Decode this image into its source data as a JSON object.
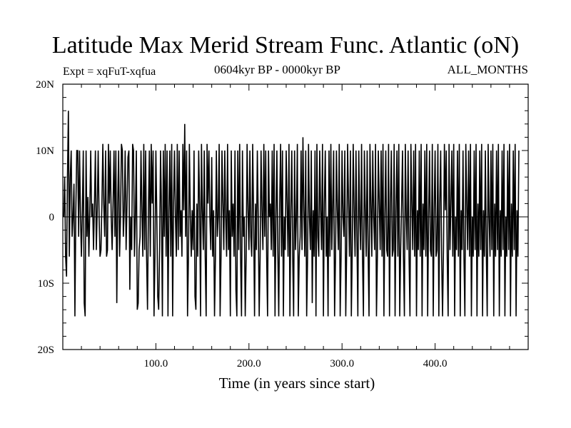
{
  "header": {
    "title": "Latitude Max Merid Stream Func. Atlantic (oN)",
    "expt": "Expt = xqFuT-xqfua",
    "period": "0604kyr BP - 0000kyr BP",
    "months": "ALL_MONTHS"
  },
  "chart_data": {
    "type": "line",
    "title": "Latitude Max Merid Stream Func. Atlantic (oN)",
    "xlabel": "Time (in years since start)",
    "ylabel": "",
    "xlim": [
      0,
      500
    ],
    "ylim": [
      -20,
      20
    ],
    "grid": false,
    "x_ticks": [
      {
        "value": 100,
        "label": "100.0"
      },
      {
        "value": 200,
        "label": "200.0"
      },
      {
        "value": 300,
        "label": "300.0"
      },
      {
        "value": 400,
        "label": "400.0"
      }
    ],
    "y_ticks": [
      {
        "value": 20,
        "label": "20N"
      },
      {
        "value": 10,
        "label": "10N"
      },
      {
        "value": 0,
        "label": "0"
      },
      {
        "value": -10,
        "label": "10S"
      },
      {
        "value": -20,
        "label": "20S"
      }
    ],
    "reference_line": 0,
    "series": [
      {
        "x_start": 1,
        "x_step": 1,
        "values": [
          0,
          6,
          -6,
          -9,
          6,
          16,
          -6,
          6,
          10,
          -3,
          0,
          5,
          -15,
          1,
          10,
          10,
          -3,
          10,
          0,
          -6,
          1,
          10,
          -13,
          -15,
          10,
          -3,
          3,
          -6,
          1,
          10,
          0,
          2,
          -5,
          2,
          10,
          -5,
          1,
          10,
          0,
          -6,
          -5,
          2,
          11,
          2,
          -3,
          10,
          -6,
          -5,
          11,
          2,
          10,
          0,
          -5,
          2,
          10,
          -3,
          10,
          -13,
          2,
          10,
          -6,
          0,
          11,
          10,
          -3,
          1,
          10,
          -5,
          2,
          9,
          10,
          -11,
          0,
          -5,
          11,
          10,
          -6,
          0,
          10,
          -14,
          -13,
          -5,
          -3,
          10,
          1,
          -6,
          11,
          -5,
          10,
          -6,
          -14,
          1,
          10,
          -6,
          11,
          2,
          10,
          -15,
          -6,
          10,
          0,
          -12,
          -14,
          -5,
          10,
          1,
          -15,
          10,
          -3,
          11,
          -6,
          10,
          -15,
          1,
          10,
          -6,
          11,
          -15,
          2,
          10,
          0,
          -6,
          11,
          -5,
          10,
          -3,
          1,
          -6,
          11,
          1,
          14,
          -3,
          10,
          -15,
          -6,
          11,
          0,
          -6,
          1,
          -5,
          10,
          -12,
          -14,
          2,
          -6,
          10,
          2,
          -15,
          11,
          1,
          -5,
          10,
          -6,
          -15,
          11,
          2,
          10,
          0,
          -5,
          9,
          -6,
          1,
          -15,
          -6,
          10,
          -3,
          0,
          11,
          -15,
          -6,
          10,
          2,
          -5,
          10,
          0,
          -6,
          11,
          -5,
          1,
          -15,
          10,
          -3,
          2,
          -6,
          10,
          -11,
          -15,
          10,
          -5,
          11,
          -6,
          -15,
          10,
          -3,
          0,
          -15,
          -6,
          11,
          1,
          -5,
          10,
          -3,
          -6,
          11,
          0,
          -15,
          2,
          -5,
          10,
          0,
          -15,
          -6,
          10,
          1,
          -5,
          11,
          -3,
          10,
          -6,
          -15,
          10,
          0,
          2,
          -5,
          10,
          -6,
          11,
          -15,
          0,
          10,
          -5,
          -15,
          2,
          11,
          -6,
          10,
          -15,
          0,
          -5,
          10,
          2,
          -6,
          11,
          -15,
          1,
          10,
          -6,
          -15,
          10,
          -5,
          0,
          11,
          -15,
          -6,
          -3,
          10,
          -5,
          12,
          1,
          -6,
          10,
          -15,
          -6,
          11,
          0,
          -5,
          10,
          -13,
          1,
          -6,
          10,
          -15,
          11,
          -3,
          -6,
          10,
          1,
          -5,
          11,
          -15,
          2,
          10,
          -6,
          0,
          -15,
          10,
          -6,
          11,
          -5,
          2,
          10,
          -15,
          -6,
          10,
          1,
          -5,
          11,
          -15,
          -6,
          10,
          0,
          -3,
          10,
          -15,
          -5,
          11,
          2,
          -6,
          10,
          -15,
          -5,
          11,
          1,
          -6,
          10,
          -3,
          -15,
          10,
          0,
          -5,
          11,
          -6,
          -15,
          10,
          1,
          -6,
          10,
          -5,
          -15,
          11,
          2,
          -6,
          10,
          0,
          -5,
          11,
          -15,
          -6,
          10,
          2,
          -5,
          10,
          -6,
          11,
          -15,
          0,
          10,
          -5,
          -6,
          11,
          -15,
          2,
          10,
          -6,
          -5,
          11,
          -15,
          1,
          10,
          -6,
          11,
          -15,
          -5,
          2,
          10,
          -6,
          -15,
          11,
          0,
          -5,
          10,
          -6,
          -15,
          11,
          2,
          -5,
          10,
          -6,
          11,
          -15,
          1,
          -5,
          10,
          -6,
          11,
          -15,
          2,
          -5,
          10,
          -6,
          11,
          -15,
          0,
          10,
          -5,
          -6,
          11,
          -15,
          1,
          10,
          -6,
          -5,
          11,
          -15,
          2,
          10,
          -6,
          -15,
          -5,
          11,
          1,
          10,
          -6,
          -15,
          11,
          -5,
          2,
          10,
          -6,
          11,
          -15,
          0,
          -5,
          10,
          -6,
          11,
          -15,
          1,
          -5,
          10,
          -6,
          -15,
          11,
          2,
          -5,
          10,
          -6,
          11,
          -15,
          0,
          -6,
          10,
          -5,
          11,
          -15,
          2,
          -6,
          10,
          -5,
          11,
          -15,
          1,
          -6,
          10,
          -5,
          -15,
          11,
          0,
          -6,
          10,
          -5,
          11,
          -15,
          2,
          -6,
          10,
          -5,
          11,
          -15,
          1,
          -6,
          10,
          -5,
          11,
          -15,
          0,
          -6,
          10,
          -5,
          11,
          -15,
          2,
          -6,
          10,
          -5,
          11,
          -15,
          1,
          -6,
          10
        ]
      }
    ]
  }
}
